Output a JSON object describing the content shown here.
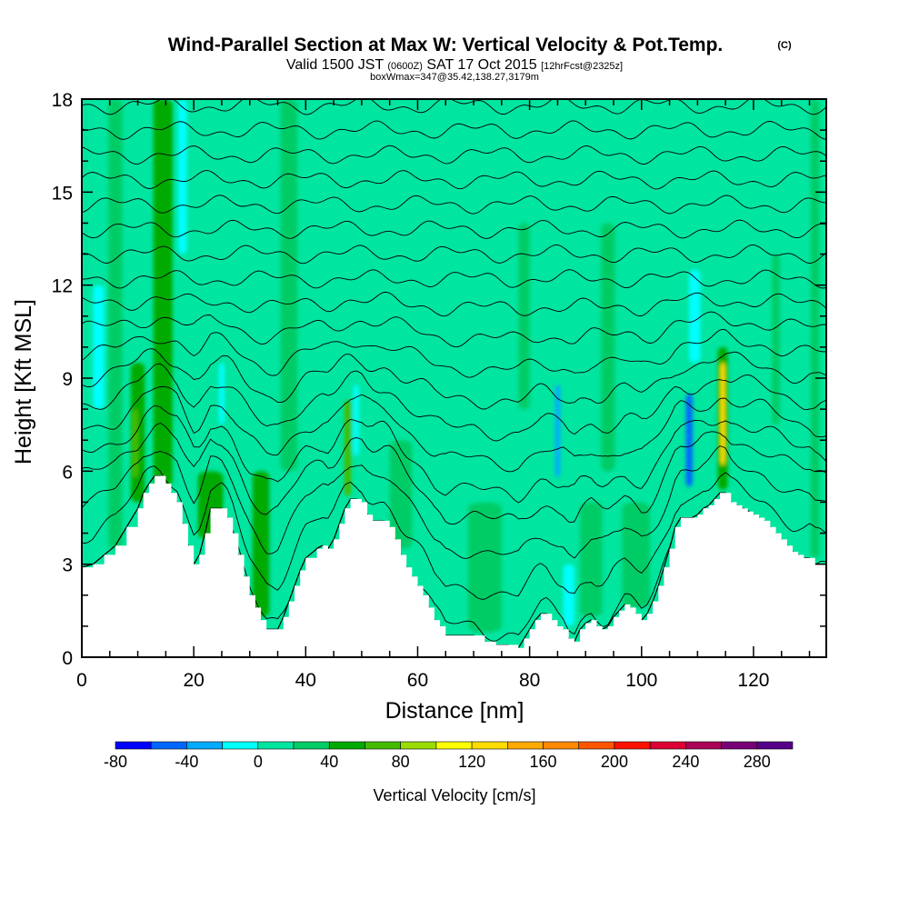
{
  "header": {
    "title": "Wind-Parallel Section at Max W: Vertical Velocity & Pot.Temp.",
    "copyright": "(C)",
    "valid_prefix": "Valid 1500 JST",
    "valid_zulu": "(0600Z)",
    "valid_date": "SAT 17 Oct 2015",
    "forecast": "[12hrFcst@2325z]",
    "boxwmax": "boxWmax=347@35.42,138.27,3179m"
  },
  "chart_data": {
    "type": "heatmap",
    "xlabel": "Distance [nm]",
    "ylabel": "Height [Kft MSL]",
    "xlim": [
      0,
      133
    ],
    "ylim": [
      0,
      18
    ],
    "x_ticks": [
      0,
      20,
      40,
      60,
      80,
      100,
      120
    ],
    "y_ticks": [
      0,
      3,
      6,
      9,
      12,
      15,
      18
    ],
    "colorbar": {
      "label": "Vertical Velocity [cm/s]",
      "min": -80,
      "max": 300,
      "step": 20,
      "tick_labels": [
        "-80",
        "-40",
        "0",
        "40",
        "80",
        "120",
        "160",
        "200",
        "240",
        "280"
      ],
      "colors": [
        "#0000ff",
        "#0066ff",
        "#00aaff",
        "#00ffff",
        "#00e5a0",
        "#00cc66",
        "#00aa00",
        "#44bb00",
        "#99dd00",
        "#ffff00",
        "#ffdd00",
        "#ffaa00",
        "#ff8800",
        "#ff5500",
        "#ff1100",
        "#dd0033",
        "#aa0055",
        "#770077",
        "#550088"
      ]
    },
    "background_level": 0,
    "terrain_kft": [
      [
        0,
        2.9
      ],
      [
        2,
        3.0
      ],
      [
        4,
        3.3
      ],
      [
        6,
        3.6
      ],
      [
        8,
        4.2
      ],
      [
        10,
        4.8
      ],
      [
        11,
        5.3
      ],
      [
        12,
        5.6
      ],
      [
        13,
        5.85
      ],
      [
        14,
        5.85
      ],
      [
        15,
        5.6
      ],
      [
        16,
        5.3
      ],
      [
        17,
        5.0
      ],
      [
        18,
        4.3
      ],
      [
        19,
        3.6
      ],
      [
        20,
        3.0
      ],
      [
        21,
        3.3
      ],
      [
        22,
        4.0
      ],
      [
        23,
        4.8
      ],
      [
        25,
        4.8
      ],
      [
        26,
        4.5
      ],
      [
        27,
        4.0
      ],
      [
        28,
        3.3
      ],
      [
        29,
        2.6
      ],
      [
        30,
        2.0
      ],
      [
        31,
        1.6
      ],
      [
        32,
        1.2
      ],
      [
        33,
        0.9
      ],
      [
        35,
        0.9
      ],
      [
        36,
        1.3
      ],
      [
        37,
        1.8
      ],
      [
        38,
        2.3
      ],
      [
        39,
        2.8
      ],
      [
        40,
        3.2
      ],
      [
        42,
        3.5
      ],
      [
        43,
        3.6
      ],
      [
        44,
        3.5
      ],
      [
        45,
        3.8
      ],
      [
        46,
        4.3
      ],
      [
        47,
        4.8
      ],
      [
        48,
        5.1
      ],
      [
        49,
        5.1
      ],
      [
        50,
        5.0
      ],
      [
        51,
        4.6
      ],
      [
        52,
        4.4
      ],
      [
        54,
        4.4
      ],
      [
        55,
        4.2
      ],
      [
        56,
        3.8
      ],
      [
        57,
        3.3
      ],
      [
        58,
        2.9
      ],
      [
        59,
        2.6
      ],
      [
        60,
        2.3
      ],
      [
        61,
        2.0
      ],
      [
        62,
        1.6
      ],
      [
        63,
        1.2
      ],
      [
        64,
        1.0
      ],
      [
        65,
        0.7
      ],
      [
        67,
        0.7
      ],
      [
        68,
        0.7
      ],
      [
        70,
        0.7
      ],
      [
        72,
        0.5
      ],
      [
        74,
        0.4
      ],
      [
        76,
        0.4
      ],
      [
        78,
        0.3
      ],
      [
        79,
        0.6
      ],
      [
        80,
        0.9
      ],
      [
        81,
        1.2
      ],
      [
        82,
        1.4
      ],
      [
        83,
        1.4
      ],
      [
        84,
        1.2
      ],
      [
        85,
        1.0
      ],
      [
        86,
        0.9
      ],
      [
        87,
        0.6
      ],
      [
        88,
        0.5
      ],
      [
        89,
        0.9
      ],
      [
        90,
        1.1
      ],
      [
        91,
        1.2
      ],
      [
        92,
        1.0
      ],
      [
        93,
        0.9
      ],
      [
        94,
        1.0
      ],
      [
        95,
        1.3
      ],
      [
        96,
        1.5
      ],
      [
        97,
        1.7
      ],
      [
        98,
        1.6
      ],
      [
        99,
        1.4
      ],
      [
        100,
        1.2
      ],
      [
        101,
        1.4
      ],
      [
        102,
        1.8
      ],
      [
        103,
        2.3
      ],
      [
        104,
        2.9
      ],
      [
        105,
        3.5
      ],
      [
        106,
        4.2
      ],
      [
        107,
        4.5
      ],
      [
        109,
        4.5
      ],
      [
        110,
        4.6
      ],
      [
        111,
        4.8
      ],
      [
        112,
        4.9
      ],
      [
        113,
        5.1
      ],
      [
        114,
        5.3
      ],
      [
        115,
        5.3
      ],
      [
        116,
        5.0
      ],
      [
        117,
        4.9
      ],
      [
        118,
        4.8
      ],
      [
        119,
        4.7
      ],
      [
        120,
        4.6
      ],
      [
        121,
        4.5
      ],
      [
        122,
        4.4
      ],
      [
        123,
        4.2
      ],
      [
        124,
        4.0
      ],
      [
        125,
        3.8
      ],
      [
        126,
        3.6
      ],
      [
        127,
        3.4
      ],
      [
        128,
        3.3
      ],
      [
        129,
        3.2
      ],
      [
        130,
        3.2
      ],
      [
        131,
        3.0
      ],
      [
        132,
        3.0
      ],
      [
        133,
        2.9
      ]
    ],
    "bands": [
      {
        "x": 14,
        "w": 0.8,
        "ymin": 5.8,
        "ymax": 18,
        "level": 240
      },
      {
        "x": 14.5,
        "w": 1.6,
        "ymin": 5.8,
        "ymax": 18,
        "level": 160
      },
      {
        "x": 14.5,
        "w": 2.4,
        "ymin": 5.8,
        "ymax": 18,
        "level": 80
      },
      {
        "x": 14.5,
        "w": 3.4,
        "ymin": 5.5,
        "ymax": 18,
        "level": 40
      },
      {
        "x": 10,
        "w": 2.5,
        "ymin": 5.0,
        "ymax": 9.5,
        "level": 40
      },
      {
        "x": 9.5,
        "w": 1.0,
        "ymin": 5.8,
        "ymax": 8,
        "level": 60
      },
      {
        "x": 3,
        "w": 2.0,
        "ymin": 8,
        "ymax": 12,
        "level": -20
      },
      {
        "x": 18,
        "w": 1.5,
        "ymin": 13,
        "ymax": 18,
        "level": -20
      },
      {
        "x": 25,
        "w": 1.0,
        "ymin": 7.5,
        "ymax": 9.5,
        "level": -20
      },
      {
        "x": 47.5,
        "w": 1.2,
        "ymin": 5.2,
        "ymax": 8.3,
        "level": 60
      },
      {
        "x": 49,
        "w": 1.0,
        "ymin": 6.5,
        "ymax": 8.8,
        "level": -20
      },
      {
        "x": 85,
        "w": 0.9,
        "ymin": 5.8,
        "ymax": 8.8,
        "level": -40
      },
      {
        "x": 108.5,
        "w": 1.2,
        "ymin": 5.5,
        "ymax": 8.5,
        "level": -60
      },
      {
        "x": 109.5,
        "w": 2.0,
        "ymin": 9.5,
        "ymax": 12.5,
        "level": -20
      },
      {
        "x": 114.5,
        "w": 1.8,
        "ymin": 5.4,
        "ymax": 10,
        "level": 40
      },
      {
        "x": 114.5,
        "w": 0.9,
        "ymin": 6.2,
        "ymax": 9.5,
        "level": 120
      },
      {
        "x": 124,
        "w": 1.4,
        "ymin": 7.5,
        "ymax": 13,
        "level": 20
      },
      {
        "x": 131,
        "w": 1.6,
        "ymin": 3.2,
        "ymax": 18,
        "level": 20
      },
      {
        "x": 6,
        "w": 2.5,
        "ymin": 3.5,
        "ymax": 18,
        "level": 20
      },
      {
        "x": 32,
        "w": 3.0,
        "ymin": 1.3,
        "ymax": 6,
        "level": 40
      },
      {
        "x": 23,
        "w": 4.5,
        "ymin": 3.8,
        "ymax": 6,
        "level": 40
      },
      {
        "x": 37,
        "w": 3.0,
        "ymin": 6,
        "ymax": 18,
        "level": 20
      },
      {
        "x": 57,
        "w": 4.0,
        "ymin": 3.5,
        "ymax": 7,
        "level": 20
      },
      {
        "x": 72,
        "w": 6.0,
        "ymin": 0.8,
        "ymax": 5,
        "level": 20
      },
      {
        "x": 91,
        "w": 4.0,
        "ymin": 1.3,
        "ymax": 5,
        "level": 20
      },
      {
        "x": 99,
        "w": 5.0,
        "ymin": 1.6,
        "ymax": 5,
        "level": 20
      },
      {
        "x": 79,
        "w": 2.0,
        "ymin": 8,
        "ymax": 14,
        "level": 20
      },
      {
        "x": 94,
        "w": 2.5,
        "ymin": 6,
        "ymax": 14,
        "level": 20
      },
      {
        "x": 87,
        "w": 2.0,
        "ymin": 1,
        "ymax": 3,
        "level": -20
      }
    ],
    "isentrope_base_kft": [
      -1,
      0,
      1,
      2,
      3,
      4,
      5,
      5.9,
      6.6,
      7.4,
      8.2,
      9.0,
      9.8,
      10.6,
      11.4,
      12.2,
      13.0,
      13.8,
      14.6,
      15.4,
      16.2,
      17.0,
      17.8
    ]
  }
}
